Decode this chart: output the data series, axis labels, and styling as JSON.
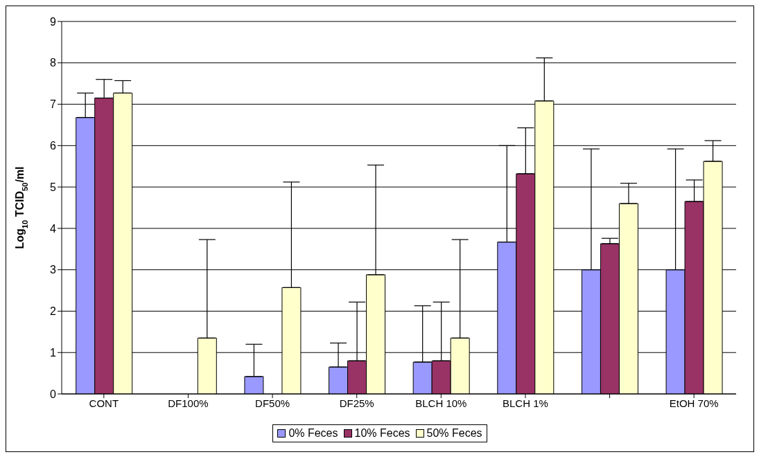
{
  "chart_data": {
    "type": "bar",
    "ylabel": "Log$_{10}$ TCID$_{50}$/ml",
    "categories": [
      "CONT",
      "DF100%",
      "DF50%",
      "DF25%",
      "BLCH 10%",
      "BLCH 1%",
      null,
      "EtOH 70%"
    ],
    "series": [
      {
        "name": "0% Feces",
        "color": "#9999ff",
        "values": [
          6.68,
          0,
          0.42,
          0.65,
          0.77,
          3.67,
          3.0,
          3.0
        ],
        "errors": [
          [
            6.68,
            7.27
          ],
          null,
          [
            0.42,
            1.2
          ],
          [
            0.65,
            1.23
          ],
          [
            0.77,
            2.13
          ],
          [
            3.67,
            6.0
          ],
          [
            3.0,
            5.92
          ],
          [
            3.0,
            5.92
          ]
        ]
      },
      {
        "name": "10% Feces",
        "color": "#993366",
        "values": [
          7.15,
          0,
          0,
          0.8,
          0.8,
          5.32,
          3.63,
          4.65
        ],
        "errors": [
          [
            7.15,
            7.6
          ],
          null,
          null,
          [
            0.8,
            2.22
          ],
          [
            0.8,
            2.22
          ],
          [
            5.32,
            6.43
          ],
          [
            3.63,
            3.76
          ],
          [
            4.65,
            5.17
          ]
        ]
      },
      {
        "name": "50% Feces",
        "color": "#ffffcc",
        "values": [
          7.27,
          1.35,
          2.57,
          2.88,
          1.35,
          7.08,
          4.6,
          5.62
        ],
        "errors": [
          [
            7.27,
            7.57
          ],
          [
            1.35,
            3.73
          ],
          [
            2.57,
            5.12
          ],
          [
            2.88,
            5.53
          ],
          [
            1.35,
            3.73
          ],
          [
            7.08,
            8.12
          ],
          [
            4.6,
            5.09
          ],
          [
            5.62,
            6.12
          ]
        ]
      }
    ],
    "ylim": [
      0,
      9
    ],
    "yticks": [
      0,
      1,
      2,
      3,
      4,
      5,
      6,
      7,
      8,
      9
    ],
    "grid": "y",
    "legend": "bottom"
  }
}
